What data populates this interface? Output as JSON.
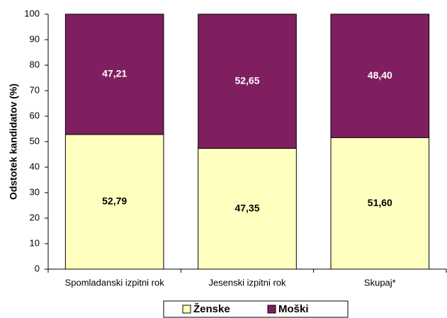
{
  "chart_data": {
    "type": "bar",
    "stacked": true,
    "y_label": "Odstotek kandidatov (%)",
    "categories": [
      "Spomladanski izpitni rok",
      "Jesenski izpitni rok",
      "Skupaj*"
    ],
    "series": [
      {
        "name": "Ženske",
        "color": "#ffffc0",
        "values": [
          52.79,
          47.35,
          51.6
        ],
        "value_labels": [
          "52,79",
          "47,35",
          "51,60"
        ]
      },
      {
        "name": "Moški",
        "color": "#7f1f5f",
        "values": [
          47.21,
          52.65,
          48.4
        ],
        "value_labels": [
          "47,21",
          "52,65",
          "48,40"
        ]
      }
    ],
    "ylim": [
      0,
      100
    ],
    "yticks": [
      0,
      10,
      20,
      30,
      40,
      50,
      60,
      70,
      80,
      90,
      100
    ],
    "grid": false,
    "legend": "bottom"
  }
}
